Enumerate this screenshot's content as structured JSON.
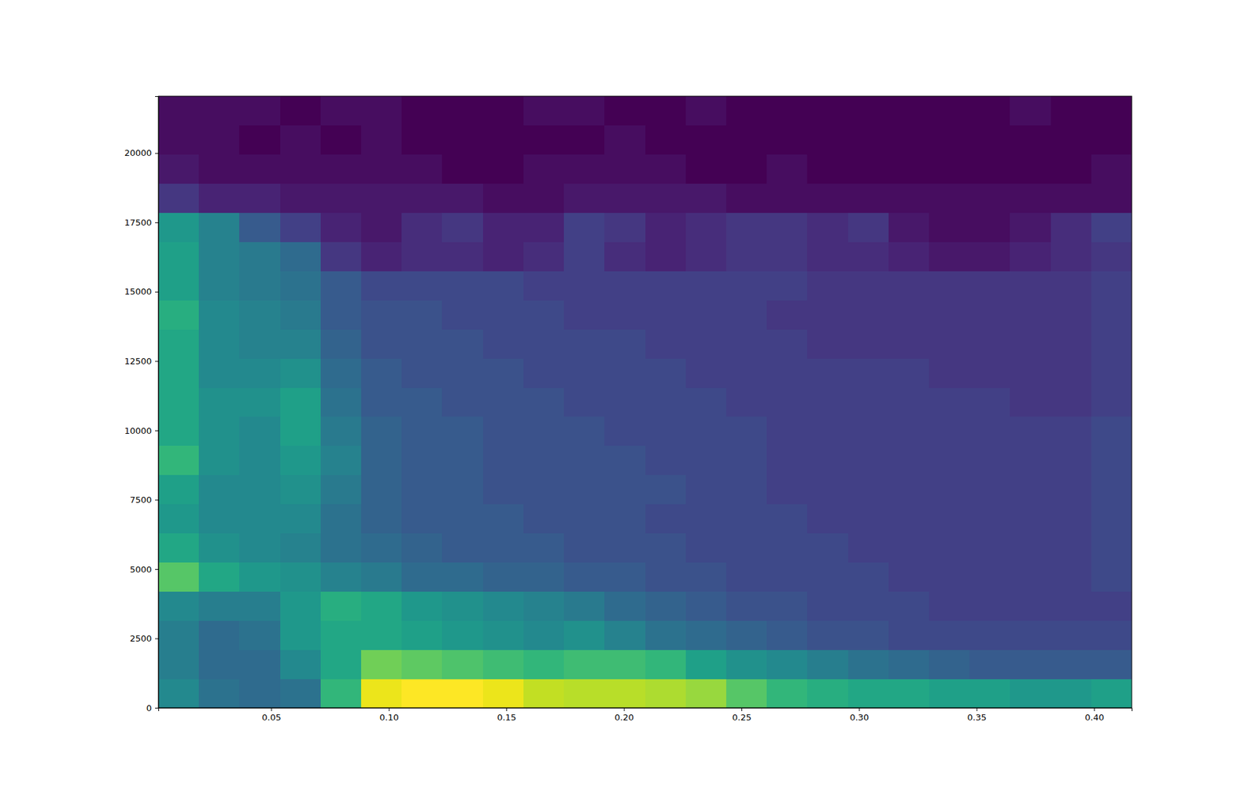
{
  "chart_data": {
    "type": "heatmap",
    "xlim": [
      0.002,
      0.416
    ],
    "ylim": [
      0,
      22050
    ],
    "xticks": [
      0.05,
      {
        "value": 0.1,
        "label": "0.10"
      },
      0.15,
      {
        "value": 0.2,
        "label": "0.20"
      },
      0.25,
      {
        "value": 0.3,
        "label": "0.30"
      },
      0.35,
      {
        "value": 0.4,
        "label": "0.40"
      }
    ],
    "yticks": [
      0,
      2500,
      5000,
      7500,
      10000,
      12500,
      15000,
      17500,
      20000
    ],
    "x_edges": [
      0.002,
      0.01925,
      0.0365,
      0.05375,
      0.071,
      0.08825,
      0.1055,
      0.12275,
      0.14,
      0.15725,
      0.1745,
      0.19175,
      0.209,
      0.22625,
      0.2435,
      0.26075,
      0.278,
      0.29525,
      0.3125,
      0.32975,
      0.347,
      0.36425,
      0.3815,
      0.39875,
      0.416
    ],
    "y_edges": [
      0,
      1050,
      2100,
      3150,
      4200,
      5250,
      6300,
      7350,
      8400,
      9450,
      10500,
      11550,
      12600,
      13650,
      14700,
      15750,
      16800,
      17850,
      18900,
      19950,
      21000,
      22050
    ],
    "cells": [
      [
        58,
        52,
        50,
        52,
        70,
        90,
        92,
        92,
        90,
        86,
        85,
        85,
        84,
        82,
        75,
        70,
        68,
        66,
        66,
        64,
        64,
        62,
        62,
        64
      ],
      [
        55,
        50,
        50,
        58,
        66,
        78,
        76,
        74,
        72,
        70,
        72,
        72,
        70,
        64,
        60,
        58,
        55,
        52,
        50,
        48,
        46,
        46,
        46,
        46
      ],
      [
        55,
        50,
        52,
        62,
        66,
        66,
        64,
        62,
        60,
        58,
        60,
        56,
        52,
        50,
        48,
        46,
        44,
        44,
        42,
        42,
        42,
        42,
        42,
        42
      ],
      [
        58,
        55,
        55,
        62,
        68,
        66,
        62,
        60,
        58,
        56,
        54,
        50,
        48,
        46,
        44,
        44,
        42,
        42,
        42,
        40,
        40,
        40,
        40,
        40
      ],
      [
        75,
        66,
        62,
        60,
        56,
        54,
        50,
        50,
        48,
        48,
        46,
        46,
        44,
        44,
        42,
        42,
        42,
        42,
        40,
        40,
        40,
        40,
        40,
        42
      ],
      [
        66,
        60,
        58,
        56,
        52,
        50,
        48,
        46,
        46,
        46,
        44,
        44,
        44,
        42,
        42,
        42,
        42,
        40,
        40,
        40,
        40,
        40,
        40,
        42
      ],
      [
        62,
        58,
        58,
        58,
        52,
        48,
        46,
        46,
        46,
        44,
        44,
        44,
        42,
        42,
        42,
        42,
        40,
        40,
        40,
        40,
        40,
        40,
        40,
        42
      ],
      [
        64,
        58,
        58,
        60,
        54,
        48,
        46,
        46,
        44,
        44,
        44,
        44,
        44,
        42,
        42,
        40,
        40,
        40,
        40,
        40,
        40,
        40,
        40,
        42
      ],
      [
        70,
        60,
        58,
        62,
        56,
        48,
        46,
        46,
        44,
        44,
        44,
        44,
        42,
        42,
        42,
        40,
        40,
        40,
        40,
        40,
        40,
        40,
        40,
        42
      ],
      [
        66,
        60,
        58,
        64,
        54,
        48,
        46,
        46,
        44,
        44,
        44,
        42,
        42,
        42,
        42,
        40,
        40,
        40,
        40,
        40,
        40,
        40,
        40,
        42
      ],
      [
        66,
        60,
        60,
        64,
        52,
        46,
        46,
        44,
        44,
        44,
        42,
        42,
        42,
        42,
        40,
        40,
        40,
        40,
        40,
        40,
        40,
        38,
        38,
        40
      ],
      [
        66,
        58,
        58,
        60,
        50,
        46,
        44,
        44,
        44,
        42,
        42,
        42,
        42,
        40,
        40,
        40,
        40,
        40,
        40,
        38,
        38,
        38,
        38,
        40
      ],
      [
        66,
        58,
        56,
        56,
        48,
        44,
        44,
        44,
        42,
        42,
        42,
        42,
        40,
        40,
        40,
        40,
        38,
        38,
        38,
        38,
        38,
        38,
        38,
        40
      ],
      [
        68,
        58,
        56,
        54,
        46,
        44,
        44,
        42,
        42,
        42,
        40,
        40,
        40,
        40,
        40,
        38,
        38,
        38,
        38,
        38,
        38,
        38,
        38,
        40
      ],
      [
        64,
        56,
        54,
        52,
        46,
        42,
        42,
        42,
        42,
        40,
        40,
        40,
        40,
        40,
        40,
        40,
        38,
        38,
        38,
        38,
        38,
        38,
        38,
        40
      ],
      [
        64,
        56,
        54,
        50,
        38,
        34,
        36,
        36,
        34,
        36,
        40,
        36,
        34,
        36,
        38,
        38,
        36,
        36,
        34,
        32,
        32,
        34,
        36,
        38
      ],
      [
        62,
        56,
        46,
        40,
        34,
        32,
        36,
        38,
        34,
        34,
        40,
        38,
        34,
        36,
        38,
        38,
        36,
        38,
        32,
        30,
        30,
        32,
        36,
        40
      ],
      [
        38,
        34,
        34,
        32,
        32,
        32,
        32,
        32,
        30,
        30,
        32,
        32,
        32,
        32,
        30,
        30,
        30,
        30,
        30,
        30,
        30,
        30,
        30,
        30
      ],
      [
        32,
        30,
        30,
        30,
        30,
        30,
        30,
        28,
        28,
        30,
        30,
        30,
        30,
        28,
        28,
        30,
        28,
        28,
        28,
        28,
        28,
        28,
        28,
        30
      ],
      [
        30,
        30,
        28,
        30,
        28,
        30,
        28,
        28,
        28,
        28,
        28,
        30,
        28,
        28,
        28,
        28,
        28,
        28,
        28,
        28,
        28,
        28,
        28,
        28
      ],
      [
        30,
        30,
        30,
        28,
        30,
        30,
        28,
        28,
        28,
        30,
        30,
        28,
        28,
        30,
        28,
        28,
        28,
        28,
        28,
        28,
        28,
        30,
        28,
        28
      ]
    ]
  }
}
